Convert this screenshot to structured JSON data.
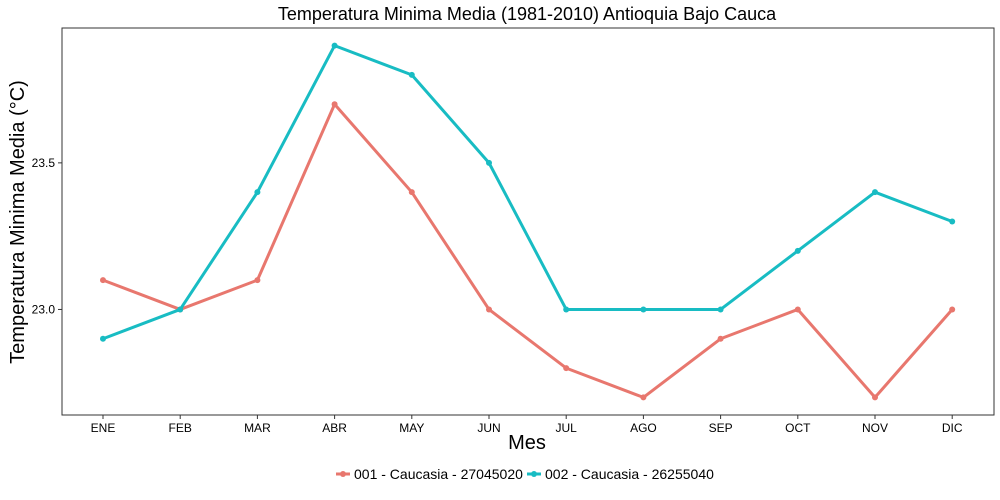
{
  "chart_data": {
    "type": "line",
    "title": "Temperatura Minima Media (1981-2010)  Antioquia Bajo Cauca",
    "xlabel": "Mes",
    "ylabel": "Temperatura Minima Media  (°C)",
    "categories": [
      "ENE",
      "FEB",
      "MAR",
      "ABR",
      "MAY",
      "JUN",
      "JUL",
      "AGO",
      "SEP",
      "OCT",
      "NOV",
      "DIC"
    ],
    "ylim": [
      22.64,
      23.96
    ],
    "yticks": [
      23.0,
      23.5
    ],
    "ytick_labels": [
      "23.0",
      "23.5"
    ],
    "grid": false,
    "legend_position": "bottom",
    "series": [
      {
        "name": "001 - Caucasia - 27045020",
        "color": "#E8776E",
        "values": [
          23.1,
          23.0,
          23.1,
          23.7,
          23.4,
          23.0,
          22.8,
          22.7,
          22.9,
          23.0,
          22.7,
          23.0
        ]
      },
      {
        "name": "002 - Caucasia - 26255040",
        "color": "#18BCC3",
        "values": [
          22.9,
          23.0,
          23.4,
          23.9,
          23.8,
          23.5,
          23.0,
          23.0,
          23.0,
          23.2,
          23.4,
          23.3
        ]
      }
    ]
  }
}
